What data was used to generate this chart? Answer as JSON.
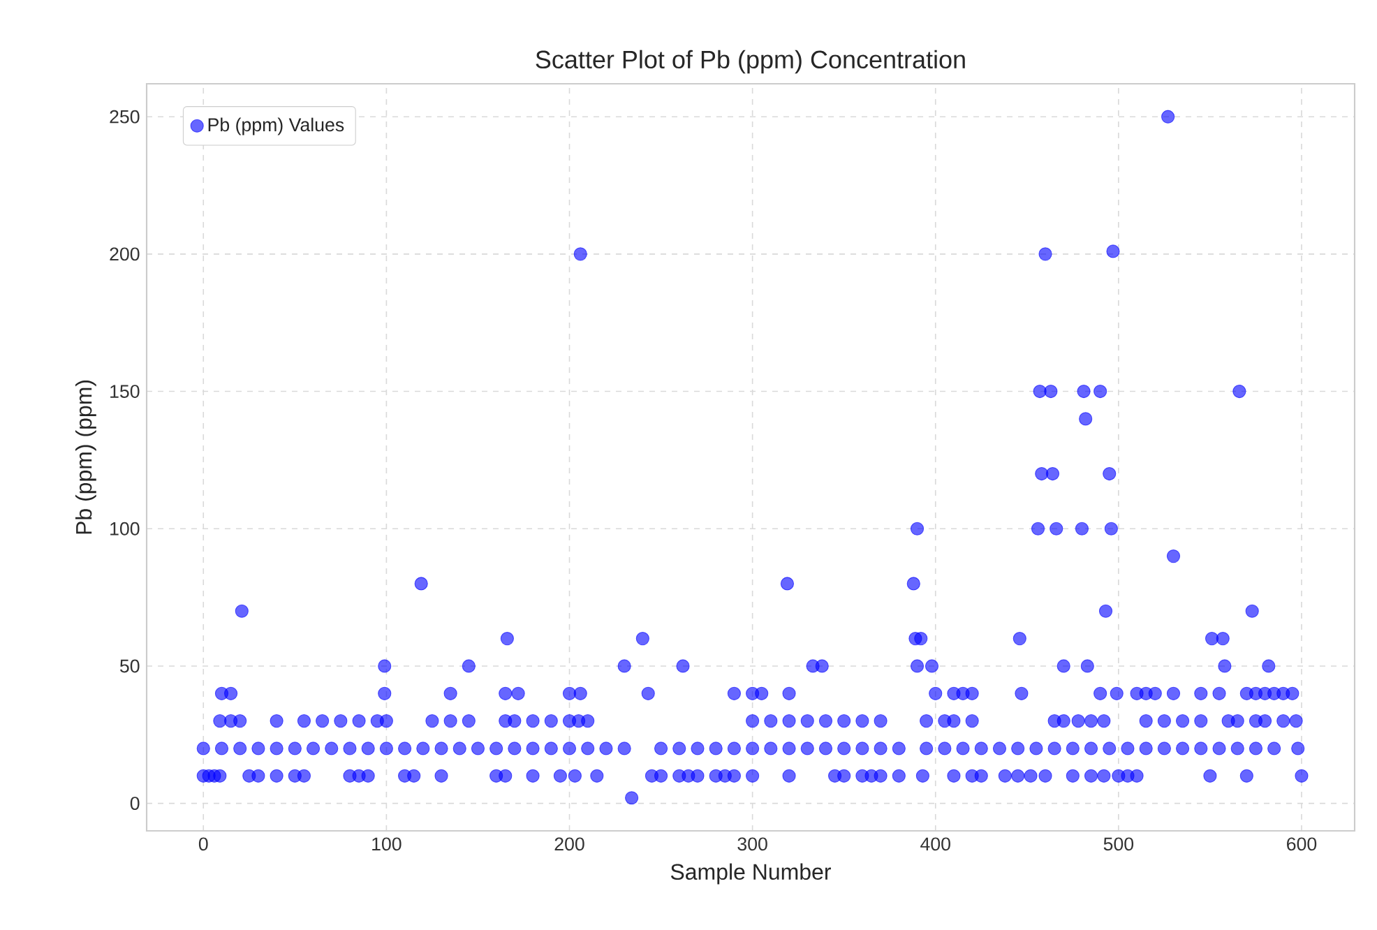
{
  "chart_data": {
    "type": "scatter",
    "title": "Scatter Plot of Pb (ppm) Concentration",
    "xlabel": "Sample Number",
    "ylabel": "Pb (ppm) (ppm)",
    "xlim": [
      -31,
      629
    ],
    "ylim": [
      -10,
      262
    ],
    "xticks": [
      0,
      100,
      200,
      300,
      400,
      500,
      600
    ],
    "yticks": [
      0,
      50,
      100,
      150,
      200,
      250
    ],
    "grid": true,
    "legend": "top left",
    "marker": "circle",
    "series": [
      {
        "name": "Pb (ppm) Values",
        "color": "#0000ff",
        "x": [
          0,
          3,
          6,
          9,
          25,
          30,
          40,
          50,
          55,
          80,
          85,
          90,
          110,
          115,
          130,
          160,
          165,
          180,
          195,
          203,
          215,
          245,
          250,
          260,
          265,
          270,
          280,
          285,
          290,
          300,
          320,
          345,
          350,
          360,
          365,
          370,
          380,
          393,
          410,
          420,
          425,
          438,
          445,
          452,
          460,
          475,
          485,
          492,
          500,
          505,
          510,
          550,
          570,
          600,
          0,
          10,
          20,
          30,
          40,
          50,
          60,
          70,
          80,
          90,
          100,
          110,
          120,
          130,
          140,
          150,
          160,
          170,
          180,
          190,
          200,
          210,
          220,
          230,
          250,
          260,
          270,
          280,
          290,
          300,
          310,
          320,
          330,
          340,
          350,
          360,
          370,
          380,
          395,
          405,
          415,
          425,
          435,
          445,
          455,
          465,
          475,
          485,
          495,
          505,
          515,
          525,
          535,
          545,
          555,
          565,
          575,
          585,
          598,
          9,
          15,
          20,
          40,
          55,
          65,
          75,
          85,
          95,
          100,
          125,
          135,
          145,
          165,
          170,
          180,
          190,
          200,
          205,
          210,
          300,
          310,
          320,
          330,
          340,
          350,
          360,
          370,
          395,
          405,
          410,
          420,
          465,
          470,
          478,
          485,
          492,
          515,
          525,
          535,
          545,
          560,
          565,
          575,
          580,
          590,
          597,
          10,
          15,
          99,
          135,
          165,
          172,
          200,
          206,
          243,
          290,
          300,
          305,
          320,
          400,
          410,
          415,
          420,
          447,
          490,
          499,
          510,
          515,
          520,
          530,
          545,
          555,
          570,
          575,
          580,
          585,
          590,
          595,
          21,
          119,
          99,
          145,
          166,
          206,
          230,
          234,
          240,
          262,
          319,
          333,
          338,
          388,
          390,
          389,
          392,
          390,
          398,
          446,
          456,
          457,
          458,
          460,
          463,
          464,
          466,
          470,
          481,
          482,
          480,
          483,
          490,
          493,
          495,
          496,
          497,
          527,
          530,
          551,
          557,
          558,
          566,
          573,
          582
        ],
        "values": [
          10,
          10,
          10,
          10,
          10,
          10,
          10,
          10,
          10,
          10,
          10,
          10,
          10,
          10,
          10,
          10,
          10,
          10,
          10,
          10,
          10,
          10,
          10,
          10,
          10,
          10,
          10,
          10,
          10,
          10,
          10,
          10,
          10,
          10,
          10,
          10,
          10,
          10,
          10,
          10,
          10,
          10,
          10,
          10,
          10,
          10,
          10,
          10,
          10,
          10,
          10,
          10,
          10,
          10,
          20,
          20,
          20,
          20,
          20,
          20,
          20,
          20,
          20,
          20,
          20,
          20,
          20,
          20,
          20,
          20,
          20,
          20,
          20,
          20,
          20,
          20,
          20,
          20,
          20,
          20,
          20,
          20,
          20,
          20,
          20,
          20,
          20,
          20,
          20,
          20,
          20,
          20,
          20,
          20,
          20,
          20,
          20,
          20,
          20,
          20,
          20,
          20,
          20,
          20,
          20,
          20,
          20,
          20,
          20,
          20,
          20,
          20,
          20,
          30,
          30,
          30,
          30,
          30,
          30,
          30,
          30,
          30,
          30,
          30,
          30,
          30,
          30,
          30,
          30,
          30,
          30,
          30,
          30,
          30,
          30,
          30,
          30,
          30,
          30,
          30,
          30,
          30,
          30,
          30,
          30,
          30,
          30,
          30,
          30,
          30,
          30,
          30,
          30,
          30,
          30,
          30,
          30,
          30,
          30,
          30,
          40,
          40,
          40,
          40,
          40,
          40,
          40,
          40,
          40,
          40,
          40,
          40,
          40,
          40,
          40,
          40,
          40,
          40,
          40,
          40,
          40,
          40,
          40,
          40,
          40,
          40,
          40,
          40,
          40,
          40,
          40,
          40,
          70,
          80,
          50,
          50,
          60,
          200,
          50,
          2,
          60,
          50,
          80,
          50,
          50,
          80,
          100,
          60,
          60,
          50,
          50,
          60,
          100,
          150,
          120,
          200,
          150,
          120,
          100,
          50,
          150,
          140,
          100,
          50,
          150,
          70,
          120,
          100,
          201,
          250,
          90,
          60,
          60,
          50,
          150,
          70,
          50
        ]
      }
    ]
  }
}
